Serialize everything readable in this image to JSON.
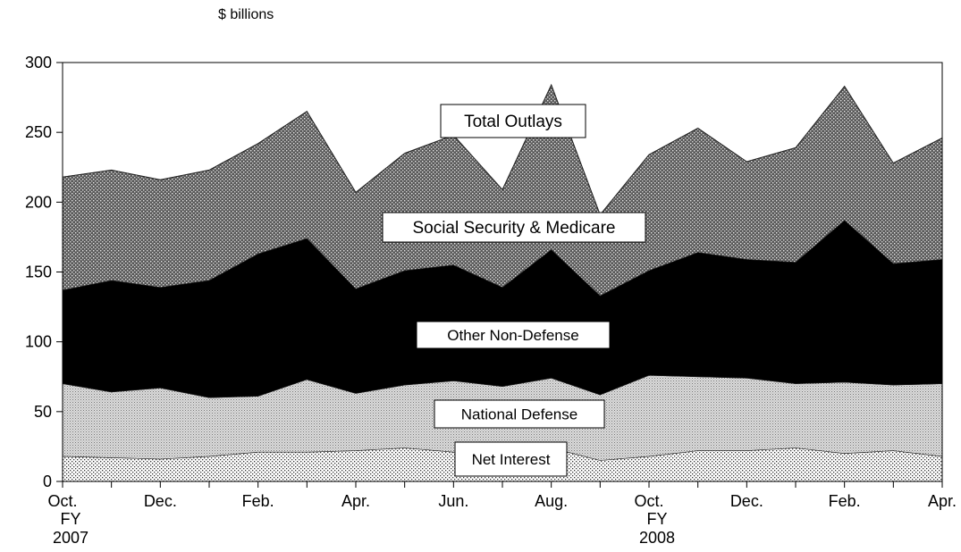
{
  "chart_data": {
    "type": "area",
    "ylabel": "$ billions",
    "ylim": [
      0,
      300
    ],
    "yticks": [
      0,
      50,
      100,
      150,
      200,
      250,
      300
    ],
    "x": [
      "Oct. 2006",
      "Nov. 2006",
      "Dec. 2006",
      "Jan. 2007",
      "Feb. 2007",
      "Mar. 2007",
      "Apr. 2007",
      "May 2007",
      "Jun. 2007",
      "Jul. 2007",
      "Aug. 2007",
      "Sep. 2007",
      "Oct. 2007",
      "Nov. 2007",
      "Dec. 2007",
      "Jan. 2008",
      "Feb. 2008",
      "Mar. 2008",
      "Apr. 2008"
    ],
    "xtick_labels": [
      "Oct.",
      "",
      "Dec.",
      "",
      "Feb.",
      "",
      "Apr.",
      "",
      "Jun.",
      "",
      "Aug.",
      "",
      "Oct.",
      "",
      "Dec.",
      "",
      "Feb.",
      "",
      "Apr."
    ],
    "fiscal_year_labels": [
      {
        "at": "Oct. 2006",
        "line1": "FY",
        "line2": "2007"
      },
      {
        "at": "Oct. 2007",
        "line1": "FY",
        "line2": "2008"
      }
    ],
    "stacked": true,
    "series": [
      {
        "name": "Net Interest",
        "pattern": "dots",
        "values": [
          18,
          17,
          16,
          18,
          21,
          21,
          22,
          24,
          21,
          21,
          24,
          15,
          18,
          22,
          22,
          24,
          20,
          22,
          18
        ]
      },
      {
        "name": "National Defense",
        "pattern": "light-stipple",
        "values": [
          52,
          47,
          51,
          42,
          40,
          52,
          41,
          45,
          51,
          47,
          50,
          47,
          58,
          53,
          52,
          46,
          51,
          47,
          52
        ]
      },
      {
        "name": "Other Non-Defense",
        "pattern": "solid-black",
        "values": [
          67,
          80,
          72,
          84,
          102,
          101,
          75,
          82,
          83,
          71,
          92,
          71,
          75,
          89,
          85,
          87,
          116,
          87,
          89
        ]
      },
      {
        "name": "Social Security & Medicare",
        "pattern": "crosshatch",
        "values": [
          81,
          79,
          77,
          79,
          79,
          91,
          69,
          84,
          93,
          70,
          118,
          58,
          83,
          89,
          70,
          82,
          96,
          72,
          87
        ]
      }
    ],
    "totals": {
      "name": "Total Outlays",
      "values": [
        218,
        223,
        216,
        223,
        242,
        265,
        207,
        235,
        248,
        209,
        284,
        191,
        234,
        253,
        229,
        239,
        283,
        228,
        246
      ]
    },
    "annotations": [
      "Total Outlays",
      "Social Security & Medicare",
      "Other Non-Defense",
      "National Defense",
      "Net Interest"
    ],
    "grid": false,
    "legend": "none"
  }
}
